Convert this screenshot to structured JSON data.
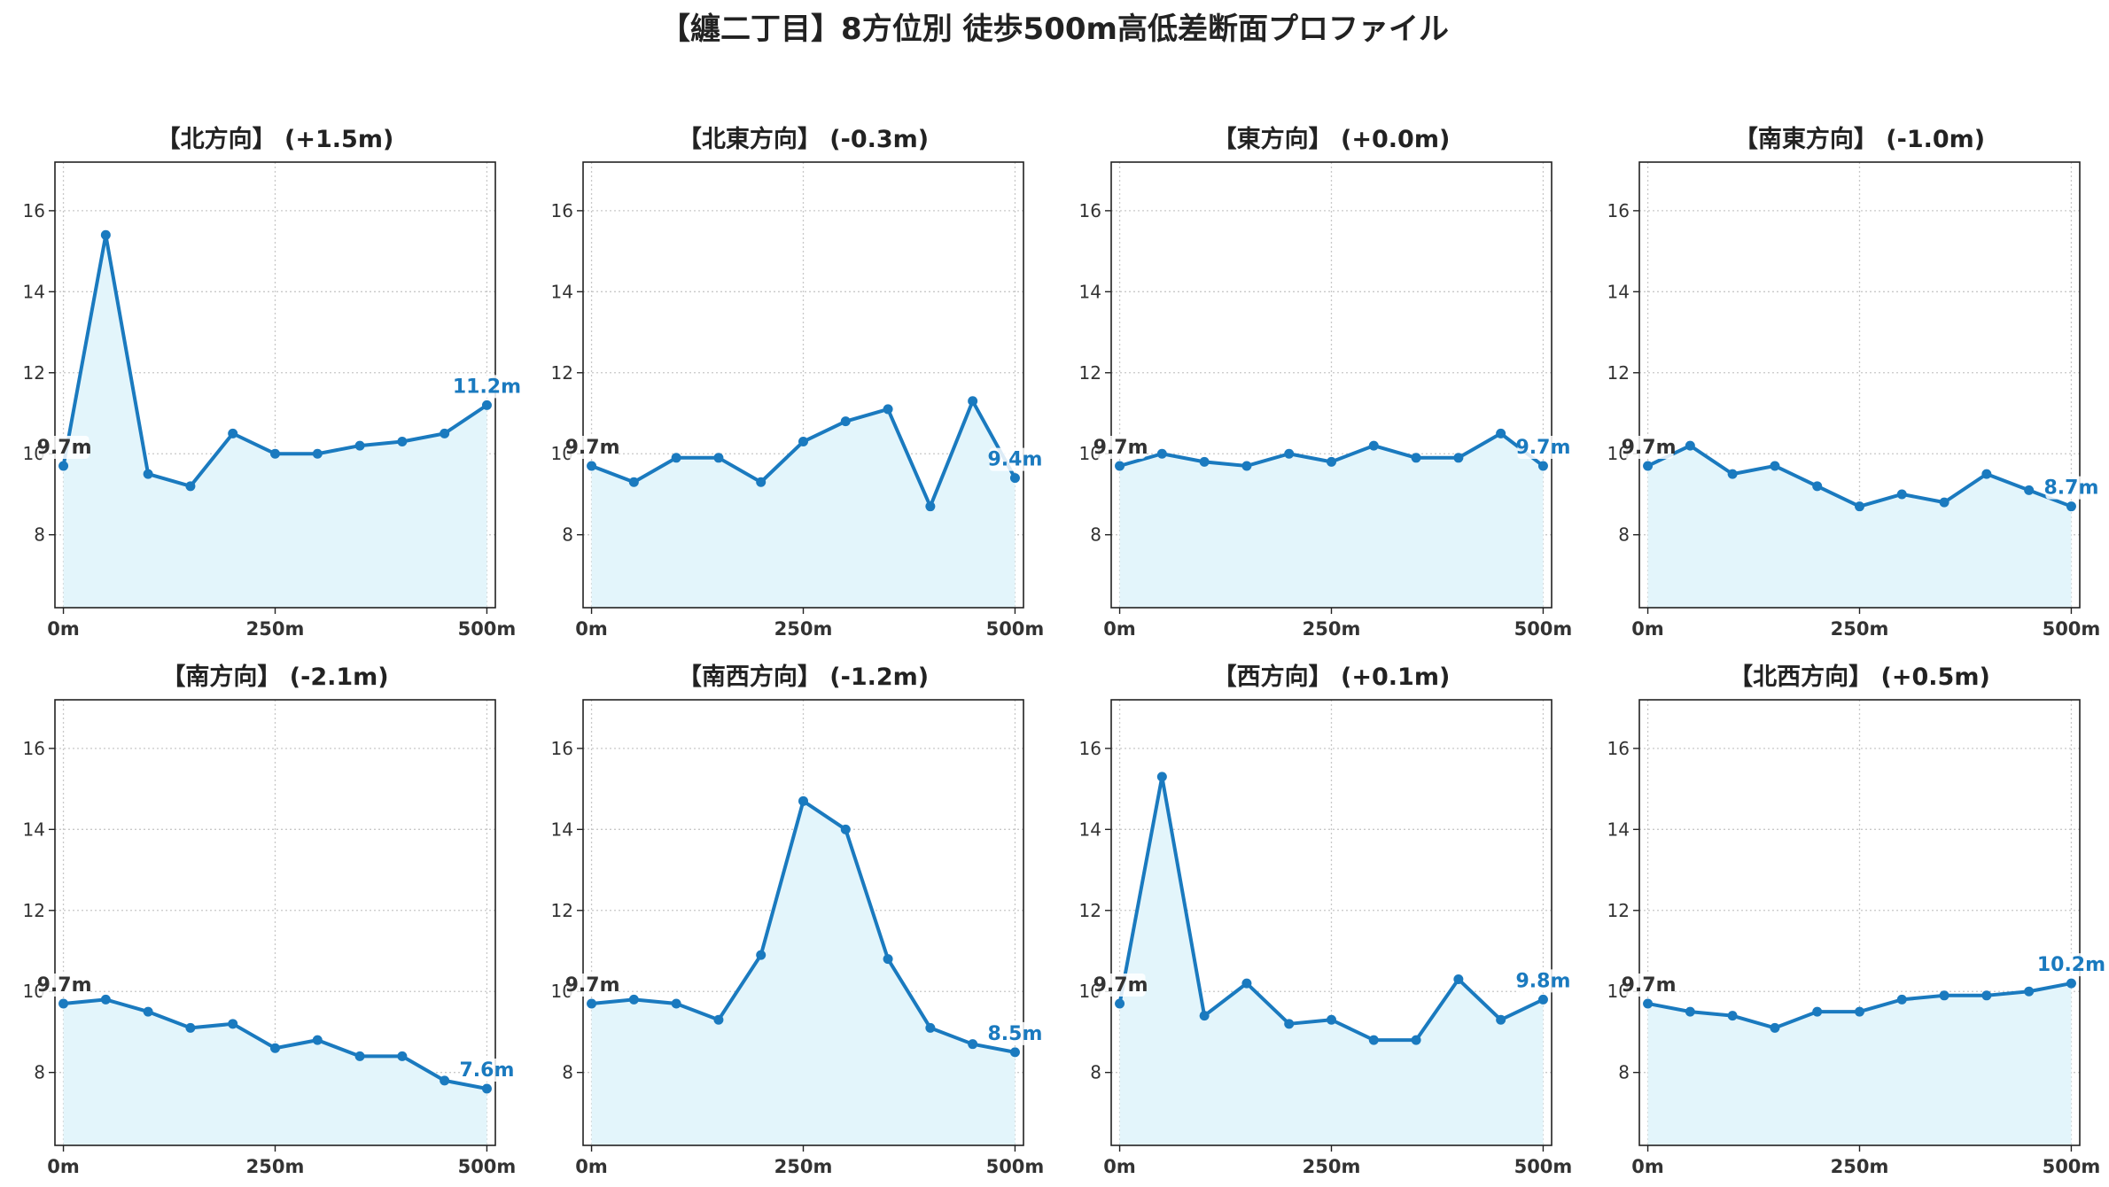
{
  "colors": {
    "line": "#1a7abf",
    "fill": "#e3f5fb",
    "grid": "#c8c8c8",
    "axis": "#222222",
    "start_label": "#333333",
    "end_label": "#1a7abf"
  },
  "chart_data": {
    "title": "【纏二丁目】8方位別 徒歩500m高低差断面プロファイル",
    "type": "area",
    "grid": true,
    "x": [
      0,
      50,
      100,
      150,
      200,
      250,
      300,
      350,
      400,
      450,
      500
    ],
    "xlim": [
      -10,
      510
    ],
    "ylim": [
      6.2,
      17.2
    ],
    "xticks": [
      0,
      250,
      500
    ],
    "xtick_labels": [
      "0m",
      "250m",
      "500m"
    ],
    "yticks": [
      8,
      10,
      12,
      14,
      16
    ],
    "panels": [
      {
        "label": "【北方向】 (+1.5m)",
        "values": [
          9.7,
          15.4,
          9.5,
          9.2,
          10.5,
          10.0,
          10.0,
          10.2,
          10.3,
          10.5,
          11.2
        ],
        "start_label": "9.7m",
        "end_label": "11.2m"
      },
      {
        "label": "【北東方向】 (-0.3m)",
        "values": [
          9.7,
          9.3,
          9.9,
          9.9,
          9.3,
          10.3,
          10.8,
          11.1,
          8.7,
          11.3,
          9.4
        ],
        "start_label": "9.7m",
        "end_label": "9.4m"
      },
      {
        "label": "【東方向】 (+0.0m)",
        "values": [
          9.7,
          10.0,
          9.8,
          9.7,
          10.0,
          9.8,
          10.2,
          9.9,
          9.9,
          10.5,
          9.7
        ],
        "start_label": "9.7m",
        "end_label": "9.7m"
      },
      {
        "label": "【南東方向】 (-1.0m)",
        "values": [
          9.7,
          10.2,
          9.5,
          9.7,
          9.2,
          8.7,
          9.0,
          8.8,
          9.5,
          9.1,
          8.7
        ],
        "start_label": "9.7m",
        "end_label": "8.7m"
      },
      {
        "label": "【南方向】 (-2.1m)",
        "values": [
          9.7,
          9.8,
          9.5,
          9.1,
          9.2,
          8.6,
          8.8,
          8.4,
          8.4,
          7.8,
          7.6
        ],
        "start_label": "9.7m",
        "end_label": "7.6m"
      },
      {
        "label": "【南西方向】 (-1.2m)",
        "values": [
          9.7,
          9.8,
          9.7,
          9.3,
          10.9,
          14.7,
          14.0,
          10.8,
          9.1,
          8.7,
          8.5
        ],
        "start_label": "9.7m",
        "end_label": "8.5m"
      },
      {
        "label": "【西方向】 (+0.1m)",
        "values": [
          9.7,
          15.3,
          9.4,
          10.2,
          9.2,
          9.3,
          8.8,
          8.8,
          10.3,
          9.3,
          9.8
        ],
        "start_label": "9.7m",
        "end_label": "9.8m"
      },
      {
        "label": "【北西方向】 (+0.5m)",
        "values": [
          9.7,
          9.5,
          9.4,
          9.1,
          9.5,
          9.5,
          9.8,
          9.9,
          9.9,
          10.0,
          10.2
        ],
        "start_label": "9.7m",
        "end_label": "10.2m"
      }
    ]
  }
}
